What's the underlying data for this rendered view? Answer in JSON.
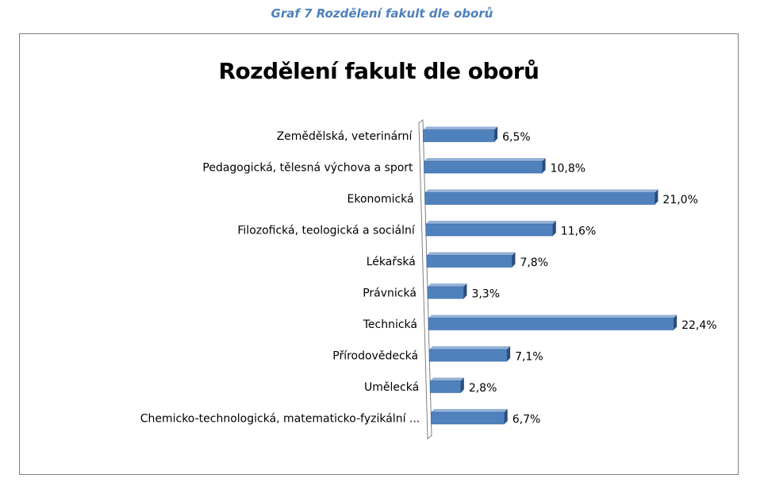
{
  "caption": "Graf 7 Rozdělení fakult dle oborů",
  "chart_data": {
    "type": "bar",
    "orientation": "horizontal",
    "title": "Rozdělení fakult dle oborů",
    "categories": [
      "Zemědělská, veterinární",
      "Pedagogická, tělesná výchova a sport",
      "Ekonomická",
      "Filozofická, teologická a sociální",
      "Lékařská",
      "Právnická",
      "Technická",
      "Přírodovědecká",
      "Umělecká",
      "Chemicko-technologická, matematicko-fyzikální ..."
    ],
    "values": [
      6.5,
      10.8,
      21.0,
      11.6,
      7.8,
      3.3,
      22.4,
      7.1,
      2.8,
      6.7
    ],
    "value_labels": [
      "6,5%",
      "10,8%",
      "21,0%",
      "11,6%",
      "7,8%",
      "3,3%",
      "22,4%",
      "7,1%",
      "2,8%",
      "6,7%"
    ],
    "bar_color": "#4f81bd",
    "xlabel": "",
    "ylabel": "",
    "grid": false,
    "legend": "none"
  }
}
